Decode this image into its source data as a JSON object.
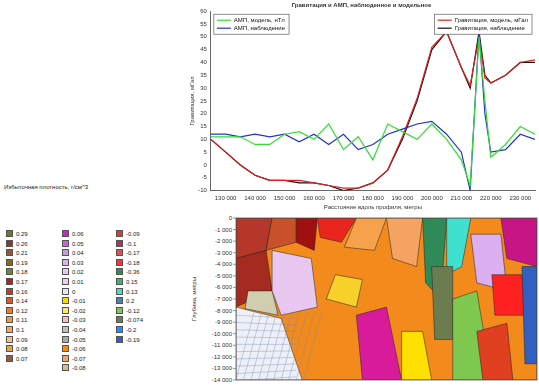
{
  "chart_data": {
    "type": "line",
    "title": "Гравитация и АМП, наблюденное и модельное",
    "x_label": "Расстояние вдоль профиля, метры",
    "y_label": "Гравитация, мГал",
    "xlim": [
      125000,
      235000
    ],
    "xticks": [
      {
        "value": 130000,
        "label": "130 000"
      },
      {
        "value": 140000,
        "label": "140 000"
      },
      {
        "value": 150000,
        "label": "150 000"
      },
      {
        "value": 160000,
        "label": "160 000"
      },
      {
        "value": 170000,
        "label": "170 000"
      },
      {
        "value": 180000,
        "label": "180 000"
      },
      {
        "value": 190000,
        "label": "190 000"
      },
      {
        "value": 200000,
        "label": "200 000"
      },
      {
        "value": 210000,
        "label": "210 000"
      },
      {
        "value": 220000,
        "label": "220 000"
      },
      {
        "value": 230000,
        "label": "230 000"
      }
    ],
    "ylim": [
      -10,
      60
    ],
    "yticks": [
      -10,
      -5,
      0,
      5,
      10,
      15,
      20,
      25,
      30,
      35,
      40,
      45,
      50,
      55,
      60
    ],
    "grid": false,
    "x": [
      125000,
      130000,
      135000,
      140000,
      145000,
      150000,
      155000,
      160000,
      165000,
      170000,
      175000,
      180000,
      185000,
      190000,
      195000,
      200000,
      205000,
      210000,
      213000,
      216000,
      218000,
      220000,
      225000,
      230000,
      235000
    ],
    "series": [
      {
        "name": "АМП, модель, нТл",
        "color": "#33dd33",
        "legend": "upper left",
        "values": [
          11,
          11,
          11,
          8,
          8,
          12,
          13,
          10,
          16,
          6,
          11,
          2,
          16,
          13,
          10,
          16,
          10,
          2,
          -8,
          50,
          25,
          3,
          8,
          15,
          12
        ]
      },
      {
        "name": "АМП, наблюдение",
        "color": "#2233cc",
        "legend": "upper left",
        "values": [
          12,
          12,
          11,
          12,
          11,
          12,
          9,
          12,
          8,
          12,
          6,
          8,
          12,
          14,
          16,
          17,
          12,
          5,
          -10,
          52,
          20,
          5,
          6,
          12,
          10
        ]
      },
      {
        "name": "Гравитация, модель, мГал",
        "color": "#dd2222",
        "legend": "upper right",
        "values": [
          10,
          5,
          0,
          -4,
          -6,
          -6,
          -6,
          -7,
          -8,
          -9,
          -9,
          -7,
          -2,
          11,
          26,
          46,
          52,
          38,
          31,
          50,
          34,
          32,
          35,
          40,
          41
        ]
      },
      {
        "name": "Гравитация, наблюдение",
        "color": "#111111",
        "legend": "upper right",
        "values": [
          10,
          5,
          0,
          -4,
          -6,
          -6,
          -7,
          -7,
          -8,
          -10,
          -9,
          -7,
          -2,
          10,
          25,
          45,
          52,
          38,
          30,
          52,
          35,
          32,
          35,
          40,
          40
        ]
      }
    ]
  },
  "section": {
    "y_label": "Глубина, метры",
    "ylim": [
      -14000,
      0
    ],
    "yticks": [
      0,
      {
        "value": -1000,
        "label": "-1 000"
      },
      {
        "value": -2000,
        "label": "-2 000"
      },
      {
        "value": -3000,
        "label": "-3 000"
      },
      {
        "value": -4000,
        "label": "-4 000"
      },
      {
        "value": -5000,
        "label": "-5 000"
      },
      {
        "value": -6000,
        "label": "-6 000"
      },
      {
        "value": -7000,
        "label": "-7 000"
      },
      {
        "value": -8000,
        "label": "-8 000"
      },
      {
        "value": -9000,
        "label": "-9 000"
      },
      {
        "value": -10000,
        "label": "-10 000"
      },
      {
        "value": -11000,
        "label": "-11 000"
      },
      {
        "value": -12000,
        "label": "-12 000"
      },
      {
        "value": -13000,
        "label": "-13 000"
      },
      {
        "value": -14000,
        "label": "-14 000"
      }
    ]
  },
  "density_legend": {
    "title": "Избыточная плотность, г/см^3",
    "columns": [
      [
        {
          "value": 0.29,
          "color": "#6b7a2a"
        },
        {
          "value": 0.26,
          "color": "#8b3a1a"
        },
        {
          "value": 0.21,
          "color": "#a0522d"
        },
        {
          "value": 0.19,
          "color": "#8b6914"
        },
        {
          "value": 0.18,
          "color": "#6b8e23"
        },
        {
          "value": 0.17,
          "color": "#b22222"
        },
        {
          "value": 0.16,
          "color": "#cd3b1f"
        },
        {
          "value": 0.14,
          "color": "#e25822"
        },
        {
          "value": 0.12,
          "color": "#ee7b22"
        },
        {
          "value": 0.11,
          "color": "#f39a3c"
        },
        {
          "value": 0.1,
          "color": "#f5a65b"
        },
        {
          "value": 0.09,
          "color": "#f7c08a"
        },
        {
          "value": 0.08,
          "color": "#e8a33d"
        },
        {
          "value": 0.07,
          "color": "#9a5a3a"
        }
      ],
      [
        {
          "value": 0.06,
          "color": "#cc22cc"
        },
        {
          "value": 0.05,
          "color": "#d85bd8"
        },
        {
          "value": 0.04,
          "color": "#c79be0"
        },
        {
          "value": 0.03,
          "color": "#d8b4f0"
        },
        {
          "value": 0.02,
          "color": "#e9c8f8"
        },
        {
          "value": 0.01,
          "color": "#f7d0e8"
        },
        {
          "value": 0,
          "color": "#e6e6fa"
        },
        {
          "value": -0.01,
          "color": "#ffd700"
        },
        {
          "value": -0.02,
          "color": "#ffe96b"
        },
        {
          "value": -0.03,
          "color": "#ffb6c1"
        },
        {
          "value": -0.04,
          "color": "#c0c0c0"
        },
        {
          "value": -0.05,
          "color": "#a9a9a9"
        },
        {
          "value": -0.06,
          "color": "#ff8c00"
        },
        {
          "value": -0.07,
          "color": "#f4a460"
        },
        {
          "value": -0.08,
          "color": "#deb887"
        }
      ],
      [
        {
          "value": -0.09,
          "color": "#d04030"
        },
        {
          "value": -0.1,
          "color": "#b03060"
        },
        {
          "value": -0.17,
          "color": "#e05050"
        },
        {
          "value": -0.18,
          "color": "#ff3030"
        },
        {
          "value": -0.36,
          "color": "#2e8b57"
        },
        {
          "value": 0.15,
          "color": "#3cb371"
        },
        {
          "value": 0.13,
          "color": "#40e0d0"
        },
        {
          "value": 0.2,
          "color": "#4682b4"
        },
        {
          "value": -0.12,
          "color": "#7ec850"
        },
        {
          "value": -0.074,
          "color": "#6b7c4e"
        },
        {
          "value": -0.2,
          "color": "#1e90ff"
        },
        {
          "value": -0.19,
          "color": "#3060c0"
        }
      ]
    ]
  }
}
